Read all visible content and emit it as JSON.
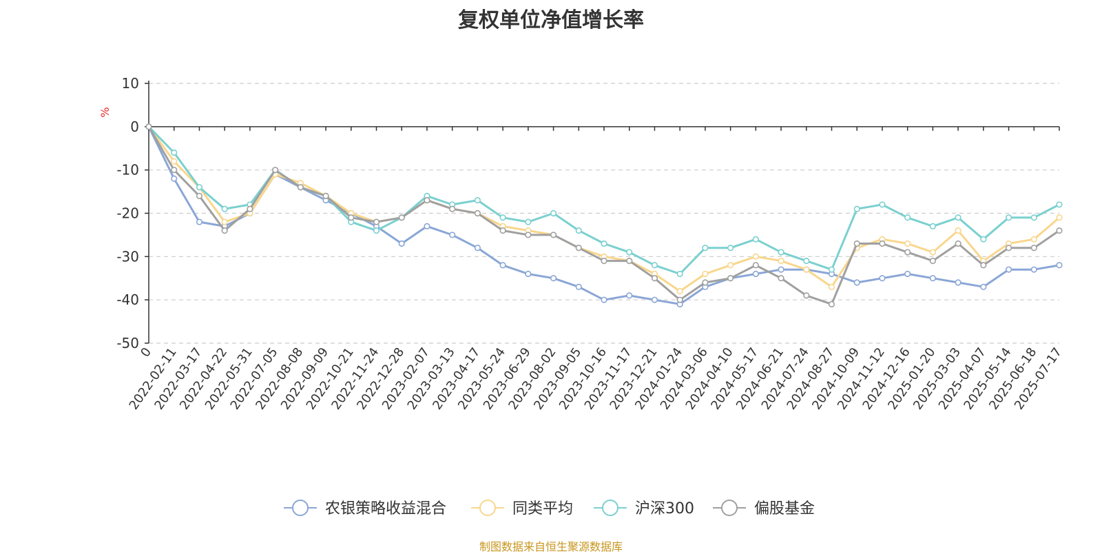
{
  "chart_data": {
    "type": "line",
    "title": "复权单位净值增长率",
    "ylabel": "%",
    "ylim": [
      -50,
      10
    ],
    "yticks": [
      10,
      0,
      -10,
      -20,
      -30,
      -40,
      -50
    ],
    "grid": true,
    "legend_position": "bottom",
    "x": [
      "0",
      "2022-02-11",
      "2022-03-17",
      "2022-04-22",
      "2022-05-31",
      "2022-07-05",
      "2022-08-08",
      "2022-09-09",
      "2022-10-21",
      "2022-11-24",
      "2022-12-28",
      "2023-02-07",
      "2023-03-13",
      "2023-04-17",
      "2023-05-24",
      "2023-06-29",
      "2023-08-02",
      "2023-09-05",
      "2023-10-16",
      "2023-11-17",
      "2023-12-21",
      "2024-01-24",
      "2024-03-06",
      "2024-04-10",
      "2024-05-17",
      "2024-06-21",
      "2024-07-24",
      "2024-08-27",
      "2024-10-09",
      "2024-11-12",
      "2024-12-16",
      "2025-01-20",
      "2025-03-03",
      "2025-04-07",
      "2025-05-14",
      "2025-06-18",
      "2025-07-17"
    ],
    "series": [
      {
        "name": "农银策略收益混合",
        "color": "#8aa6d6",
        "values": [
          0,
          -12,
          -22,
          -23,
          -20,
          -11,
          -14,
          -17,
          -20,
          -23,
          -27,
          -23,
          -25,
          -28,
          -32,
          -34,
          -35,
          -37,
          -40,
          -39,
          -40,
          -41,
          -37,
          -35,
          -34,
          -33,
          -33,
          -34,
          -36,
          -35,
          -34,
          -35,
          -36,
          -37,
          -33,
          -33,
          -32
        ]
      },
      {
        "name": "同类平均",
        "color": "#f9d68d",
        "values": [
          0,
          -8,
          -14,
          -22,
          -20,
          -11,
          -13,
          -16,
          -20,
          -22,
          -21,
          -17,
          -19,
          -20,
          -23,
          -24,
          -25,
          -28,
          -30,
          -31,
          -34,
          -38,
          -34,
          -32,
          -30,
          -31,
          -33,
          -37,
          -28,
          -26,
          -27,
          -29,
          -24,
          -31,
          -27,
          -26,
          -21
        ]
      },
      {
        "name": "沪深300",
        "color": "#7ad0cf",
        "values": [
          0,
          -6,
          -14,
          -19,
          -18,
          -10,
          -14,
          -16,
          -22,
          -24,
          -21,
          -16,
          -18,
          -17,
          -21,
          -22,
          -20,
          -24,
          -27,
          -29,
          -32,
          -34,
          -28,
          -28,
          -26,
          -29,
          -31,
          -33,
          -19,
          -18,
          -21,
          -23,
          -21,
          -26,
          -21,
          -21,
          -18
        ]
      },
      {
        "name": "偏股基金",
        "color": "#a0a0a0",
        "values": [
          0,
          -10,
          -16,
          -24,
          -19,
          -10,
          -14,
          -16,
          -21,
          -22,
          -21,
          -17,
          -19,
          -20,
          -24,
          -25,
          -25,
          -28,
          -31,
          -31,
          -35,
          -40,
          -36,
          -35,
          -32,
          -35,
          -39,
          -41,
          -27,
          -27,
          -29,
          -31,
          -27,
          -32,
          -28,
          -28,
          -24
        ]
      }
    ]
  },
  "source_note": "制图数据来自恒生聚源数据库"
}
